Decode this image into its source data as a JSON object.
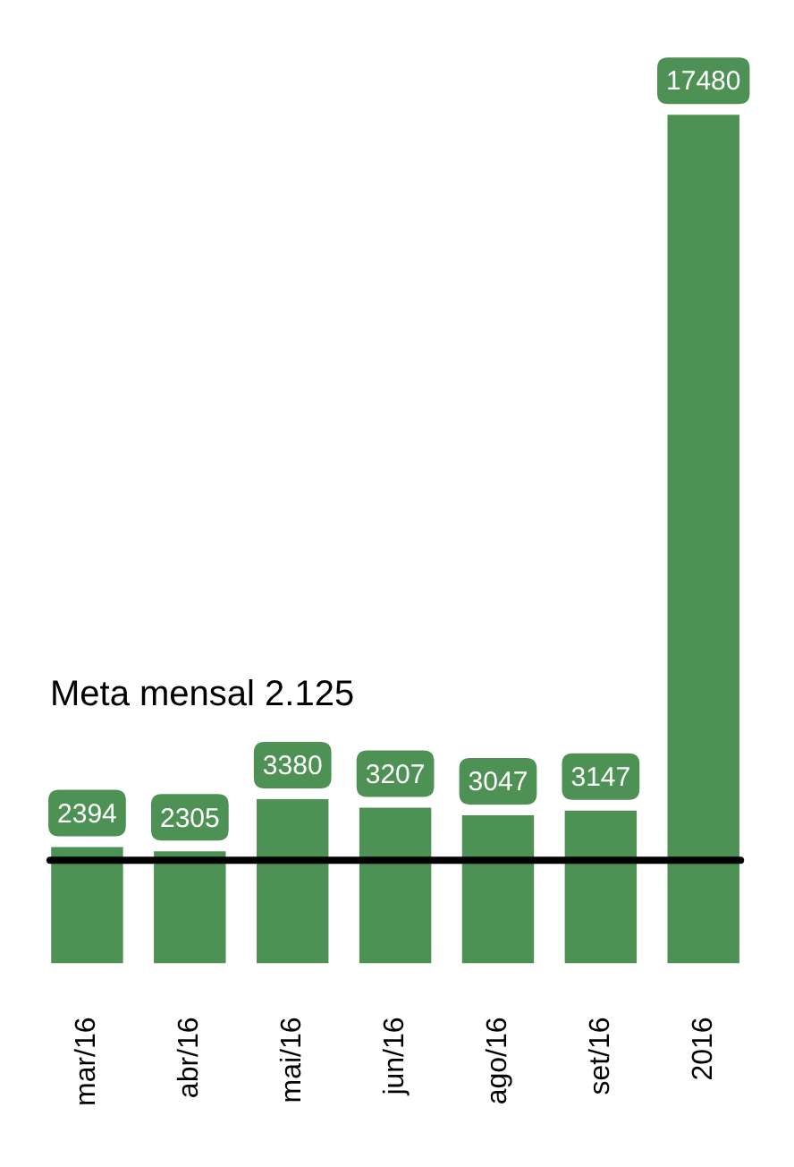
{
  "chart_data": {
    "type": "bar",
    "categories": [
      "mar/16",
      "abr/16",
      "mai/16",
      "jun/16",
      "ago/16",
      "set/16",
      "2016"
    ],
    "values": [
      2394,
      2305,
      3380,
      3207,
      3047,
      3147,
      17480
    ],
    "color": "#4e9155",
    "data_labels": true,
    "grid": false,
    "legend": false,
    "ref_lines": [
      {
        "axis": "y",
        "value": 2125,
        "label": "Meta mensal 2.125",
        "color": "#000000"
      }
    ]
  }
}
